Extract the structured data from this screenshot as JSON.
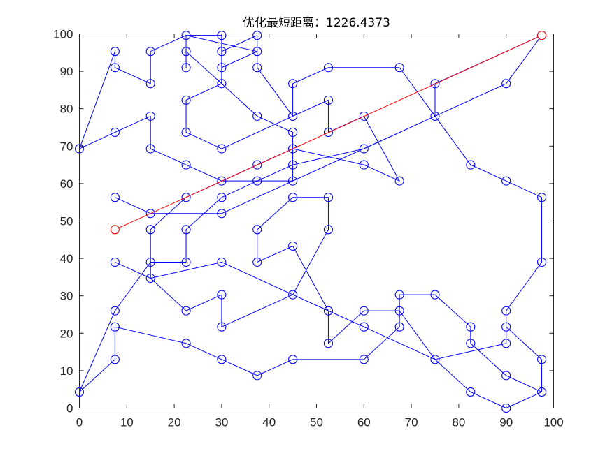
{
  "chart_data": {
    "type": "line",
    "title": "优化最短距离：1226.4373",
    "xlabel": "",
    "ylabel": "",
    "xlim": [
      0,
      100
    ],
    "ylim": [
      0,
      100
    ],
    "xticks": [
      0,
      10,
      20,
      30,
      40,
      50,
      60,
      70,
      80,
      90,
      100
    ],
    "yticks": [
      0,
      10,
      20,
      30,
      40,
      50,
      60,
      70,
      80,
      90,
      100
    ],
    "grid": false,
    "series": [
      {
        "style": "blue-line-with-circle-markers",
        "color": "#0000ff",
        "x": [
          7.5,
          15,
          30,
          45,
          75,
          90,
          97.5,
          75,
          75,
          67.5,
          52.5,
          45,
          45,
          37.5,
          37.5,
          30,
          30,
          22.5,
          22.5,
          30,
          45,
          52.5,
          52.5,
          60,
          67.5,
          60,
          45,
          37.5,
          22.5,
          15,
          15,
          7.5,
          0,
          7.5,
          7.5,
          22.5,
          30,
          37.5,
          45,
          60,
          67.5,
          67.5,
          75,
          82.5,
          82.5,
          90,
          97.5,
          97.5,
          90,
          90,
          75,
          67.5,
          60,
          52.5,
          52.5,
          45,
          37.5,
          37.5,
          45,
          52.5,
          52.5,
          45,
          30,
          30,
          22.5,
          15,
          15,
          22.5,
          22.5,
          30,
          37.5,
          45,
          45,
          37.5,
          30,
          22.5,
          22.5,
          22.5,
          37.5,
          30,
          30,
          22.5,
          15,
          15,
          7.5,
          7.5,
          0,
          7.5,
          15,
          15,
          22.5,
          30,
          37.5,
          45,
          60,
          75,
          82.5,
          90,
          97.5,
          97.5,
          90,
          90,
          97.5,
          97.5,
          90,
          82.5,
          75,
          60,
          52.5,
          45,
          30,
          15,
          7.5
        ],
        "y": [
          56.3,
          52,
          52,
          60.7,
          78,
          86.7,
          99.6,
          86.7,
          78,
          91,
          91,
          86.7,
          78,
          91,
          99.6,
          95.3,
          86.7,
          82.3,
          73.7,
          69.3,
          78,
          82.3,
          73.7,
          78,
          60.7,
          65,
          69.3,
          65,
          56.3,
          47.7,
          39,
          26,
          4.3,
          13,
          21.7,
          17.3,
          13,
          8.7,
          13,
          13,
          21.7,
          30.3,
          30.3,
          21.7,
          17.3,
          8.7,
          4.3,
          13,
          21.7,
          17.3,
          13,
          26,
          26,
          17.3,
          26,
          43.3,
          39,
          47.7,
          56.3,
          56.3,
          47.7,
          30.3,
          21.7,
          30.3,
          26,
          34.7,
          39,
          39,
          47.7,
          56.3,
          60.7,
          60.7,
          73.7,
          78,
          86.7,
          95.3,
          91,
          99.6,
          95.3,
          91,
          99.6,
          99.6,
          95.3,
          86.7,
          91,
          95.3,
          69.3,
          73.7,
          78,
          69.3,
          65,
          60.7,
          60.7,
          65,
          69.3,
          78,
          65,
          60.7,
          56.3,
          39,
          26,
          21.7,
          13,
          4.3,
          0,
          4.3,
          13,
          21.7,
          26,
          30.3,
          39,
          34.7,
          39
        ]
      },
      {
        "style": "red-segment",
        "color": "#ff0000",
        "x": [
          7.5,
          22.5,
          97.5
        ],
        "y": [
          47.7,
          56.3,
          99.6
        ]
      }
    ]
  }
}
